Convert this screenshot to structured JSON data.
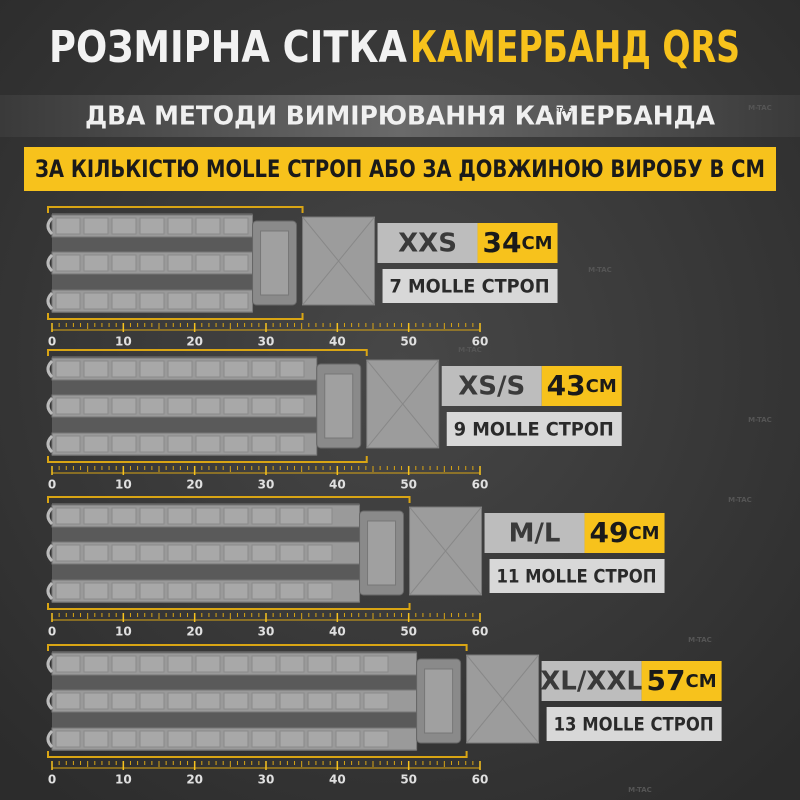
{
  "header": {
    "title_white": "РОЗМІРНА СІТКА",
    "title_yellow": "КАМЕРБАНД QRS",
    "subtitle": "ДВА МЕТОДИ ВИМІРЮВАННЯ КАМЕРБАНДА",
    "banner": "ЗА КІЛЬКІСТЮ MOLLE СТРОП АБО ЗА ДОВЖИНОЮ ВИРОБУ В СМ"
  },
  "ruler": [
    0,
    10,
    20,
    30,
    40,
    50,
    60
  ],
  "sizes": [
    {
      "size": "XXS",
      "length": 34,
      "unit": "СМ",
      "molle": "7 MOLLE СТРОП"
    },
    {
      "size": "XS/S",
      "length": 43,
      "unit": "СМ",
      "molle": "9 MOLLE СТРОП"
    },
    {
      "size": "M/L",
      "length": 49,
      "unit": "СМ",
      "molle": "11 MOLLE СТРОП"
    },
    {
      "size": "XL/XXL",
      "length": 57,
      "unit": "СМ",
      "molle": "13 MOLLE СТРОП"
    }
  ],
  "watermark": "M-TAC"
}
